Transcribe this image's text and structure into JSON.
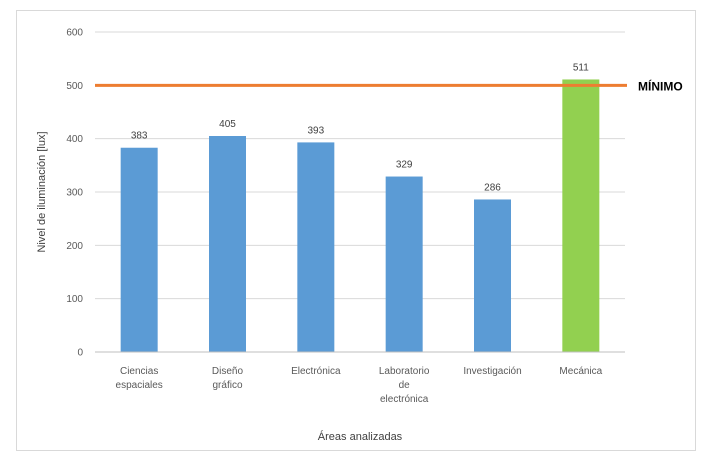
{
  "chart_data": {
    "type": "bar",
    "title": "",
    "xlabel": "Áreas analizadas",
    "ylabel": "Nivel de iluminación  [lux]",
    "ylim": [
      0,
      600
    ],
    "yticks": [
      0,
      100,
      200,
      300,
      400,
      500,
      600
    ],
    "grid": true,
    "categories": [
      [
        "Ciencias",
        "espaciales"
      ],
      [
        "Diseño",
        "gráfico"
      ],
      [
        "Electrónica"
      ],
      [
        "Laboratorio",
        "de",
        "electrónica"
      ],
      [
        "Investigación"
      ],
      [
        "Mecánica"
      ]
    ],
    "values": [
      383,
      405,
      393,
      329,
      286,
      511
    ],
    "data_labels": [
      "383",
      "405",
      "393",
      "329",
      "286",
      "511"
    ],
    "bar_colors": [
      "#5b9bd5",
      "#5b9bd5",
      "#5b9bd5",
      "#5b9bd5",
      "#5b9bd5",
      "#92d050"
    ],
    "reference_line": {
      "value": 500,
      "label": "MÍNIMO",
      "color": "#ed7d31"
    }
  }
}
